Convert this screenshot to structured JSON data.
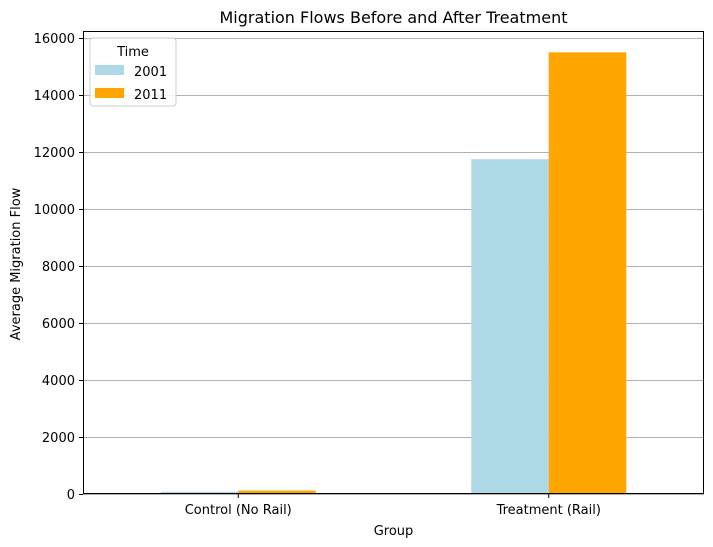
{
  "chart_data": {
    "type": "bar",
    "title": "Migration Flows Before and After Treatment",
    "xlabel": "Group",
    "ylabel": "Average Migration Flow",
    "categories": [
      "Control (No Rail)",
      "Treatment (Rail)"
    ],
    "series": [
      {
        "name": "2001",
        "color": "#add8e6",
        "values": [
          80,
          11750
        ]
      },
      {
        "name": "2011",
        "color": "#ffa500",
        "values": [
          120,
          15500
        ]
      }
    ],
    "ylim": [
      0,
      16250
    ],
    "yticks": [
      0,
      2000,
      4000,
      6000,
      8000,
      10000,
      12000,
      14000,
      16000
    ],
    "grid": "y-major",
    "legend": {
      "title": "Time",
      "placement": "top-left"
    }
  }
}
